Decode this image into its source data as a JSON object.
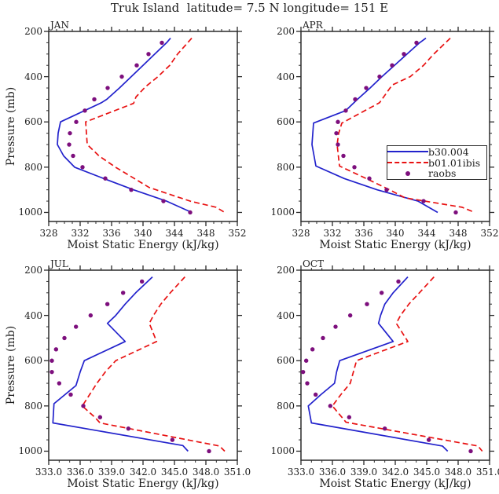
{
  "title": "Truk Island  latitude= 7.5 N longitude= 151 E",
  "colors": {
    "b30_004": "#2222cc",
    "b01_01ibis": "#e81111",
    "raobs": "#7d0f7d",
    "frame": "#2a2a2a",
    "text": "#1d1d1d"
  },
  "legend": {
    "entries": [
      {
        "label": "b30.004",
        "swatch": "solid-blue-line"
      },
      {
        "label": "b01.01ibis",
        "swatch": "dashed-red-line"
      },
      {
        "label": "raobs",
        "swatch": "purple-dot"
      }
    ]
  },
  "chart_data": [
    {
      "type": "line",
      "title": "JAN",
      "xlabel": "Moist Static Energy (kJ/kg)",
      "ylabel": "Pressure (mb)",
      "xlim": [
        328,
        352
      ],
      "xticks": [
        328,
        332,
        336,
        340,
        344,
        348,
        352
      ],
      "xtick_labels": [
        "328",
        "332",
        "336",
        "340",
        "344",
        "348",
        "352"
      ],
      "xminor_step": 1,
      "ylim": [
        200,
        1040
      ],
      "yticks": [
        200,
        400,
        600,
        800,
        1000
      ],
      "ytick_labels": [
        "200",
        "400",
        "600",
        "800",
        "1000"
      ],
      "yminor_step": 50,
      "y_axis_reversed_note": "pressure increases downward",
      "series": [
        {
          "name": "b30.004",
          "style": "solid",
          "color": "#2222cc",
          "points": [
            [
              230,
              343.5
            ],
            [
              250,
              343.0
            ],
            [
              300,
              341.5
            ],
            [
              350,
              340.0
            ],
            [
              400,
              338.5
            ],
            [
              450,
              337.0
            ],
            [
              500,
              335.4
            ],
            [
              515,
              334.7
            ],
            [
              600,
              329.5
            ],
            [
              650,
              329.2
            ],
            [
              700,
              329.1
            ],
            [
              750,
              329.9
            ],
            [
              800,
              331.3
            ],
            [
              850,
              335.0
            ],
            [
              900,
              338.8
            ],
            [
              950,
              343.0
            ],
            [
              1000,
              346.2
            ]
          ]
        },
        {
          "name": "b01.01ibis",
          "style": "dashed",
          "color": "#e81111",
          "points": [
            [
              230,
              346.2
            ],
            [
              300,
              344.4
            ],
            [
              350,
              343.4
            ],
            [
              400,
              341.9
            ],
            [
              445,
              340.3
            ],
            [
              490,
              339.1
            ],
            [
              518,
              338.8
            ],
            [
              600,
              332.7
            ],
            [
              650,
              332.8
            ],
            [
              700,
              332.9
            ],
            [
              750,
              334.4
            ],
            [
              800,
              336.5
            ],
            [
              850,
              338.9
            ],
            [
              890,
              340.8
            ],
            [
              950,
              346.0
            ],
            [
              977,
              349.3
            ],
            [
              1000,
              350.4
            ]
          ]
        },
        {
          "name": "raobs",
          "style": "dots",
          "color": "#7d0f7d",
          "points": [
            [
              250,
              342.4
            ],
            [
              300,
              340.7
            ],
            [
              350,
              339.2
            ],
            [
              400,
              337.3
            ],
            [
              450,
              335.5
            ],
            [
              500,
              333.8
            ],
            [
              550,
              332.6
            ],
            [
              600,
              331.5
            ],
            [
              650,
              330.7
            ],
            [
              700,
              330.6
            ],
            [
              750,
              331.1
            ],
            [
              800,
              332.3
            ],
            [
              850,
              335.2
            ],
            [
              900,
              338.5
            ],
            [
              950,
              342.6
            ],
            [
              1000,
              346.0
            ]
          ]
        }
      ]
    },
    {
      "type": "line",
      "title": "APR",
      "xlabel": "Moist Static Energy (kJ/kg)",
      "ylabel": "",
      "xlim": [
        328,
        352
      ],
      "xticks": [
        328,
        332,
        336,
        340,
        344,
        348,
        352
      ],
      "xtick_labels": [
        "328",
        "332",
        "336",
        "340",
        "344",
        "348",
        "352"
      ],
      "xminor_step": 1,
      "ylim": [
        200,
        1040
      ],
      "yticks": [
        200,
        400,
        600,
        800,
        1000
      ],
      "ytick_labels": [
        "200",
        "400",
        "600",
        "800",
        "1000"
      ],
      "yminor_step": 50,
      "series": [
        {
          "name": "b30.004",
          "style": "solid",
          "color": "#2222cc",
          "points": [
            [
              230,
              343.9
            ],
            [
              250,
              343.1
            ],
            [
              300,
              341.5
            ],
            [
              350,
              339.9
            ],
            [
              400,
              338.3
            ],
            [
              450,
              336.8
            ],
            [
              500,
              335.2
            ],
            [
              550,
              333.7
            ],
            [
              605,
              329.6
            ],
            [
              700,
              329.4
            ],
            [
              795,
              329.9
            ],
            [
              850,
              333.5
            ],
            [
              900,
              337.7
            ],
            [
              950,
              342.9
            ],
            [
              1000,
              345.4
            ]
          ]
        },
        {
          "name": "b01.01ibis",
          "style": "dashed",
          "color": "#e81111",
          "points": [
            [
              230,
              347.0
            ],
            [
              300,
              344.9
            ],
            [
              350,
              343.6
            ],
            [
              400,
              341.9
            ],
            [
              437,
              339.6
            ],
            [
              515,
              338.0
            ],
            [
              605,
              333.2
            ],
            [
              650,
              332.8
            ],
            [
              700,
              332.6
            ],
            [
              795,
              332.9
            ],
            [
              850,
              336.3
            ],
            [
              900,
              339.3
            ],
            [
              935,
              341.2
            ],
            [
              977,
              348.5
            ],
            [
              1000,
              350.1
            ]
          ]
        },
        {
          "name": "raobs",
          "style": "dots",
          "color": "#7d0f7d",
          "points": [
            [
              250,
              342.7
            ],
            [
              300,
              341.1
            ],
            [
              350,
              339.6
            ],
            [
              400,
              338.0
            ],
            [
              450,
              336.3
            ],
            [
              500,
              334.9
            ],
            [
              550,
              333.7
            ],
            [
              600,
              332.7
            ],
            [
              650,
              332.5
            ],
            [
              700,
              332.7
            ],
            [
              750,
              333.4
            ],
            [
              800,
              334.8
            ],
            [
              850,
              336.7
            ],
            [
              900,
              338.9
            ],
            [
              950,
              343.6
            ],
            [
              1000,
              347.7
            ]
          ]
        }
      ]
    },
    {
      "type": "line",
      "title": "JUL",
      "xlabel": "Moist Static Energy (kJ/kg)",
      "ylabel": "Pressure (mb)",
      "xlim": [
        333,
        351
      ],
      "xticks": [
        333,
        336,
        339,
        342,
        345,
        348,
        351
      ],
      "xtick_labels": [
        "333.0",
        "336.0",
        "339.0",
        "342.0",
        "345.0",
        "348.0",
        "351.0"
      ],
      "xminor_step": 1,
      "ylim": [
        200,
        1040
      ],
      "yticks": [
        200,
        400,
        600,
        800,
        1000
      ],
      "ytick_labels": [
        "200",
        "400",
        "600",
        "800",
        "1000"
      ],
      "yminor_step": 50,
      "series": [
        {
          "name": "b30.004",
          "style": "solid",
          "color": "#2222cc",
          "points": [
            [
              230,
              342.9
            ],
            [
              300,
              341.3
            ],
            [
              350,
              340.3
            ],
            [
              400,
              339.4
            ],
            [
              435,
              338.6
            ],
            [
              515,
              340.3
            ],
            [
              600,
              336.4
            ],
            [
              650,
              336.0
            ],
            [
              710,
              335.6
            ],
            [
              790,
              333.5
            ],
            [
              875,
              333.4
            ],
            [
              975,
              345.8
            ],
            [
              1000,
              346.3
            ]
          ]
        },
        {
          "name": "b01.01ibis",
          "style": "dashed",
          "color": "#e81111",
          "points": [
            [
              230,
              346.0
            ],
            [
              300,
              344.6
            ],
            [
              350,
              343.7
            ],
            [
              400,
              343.0
            ],
            [
              435,
              342.6
            ],
            [
              515,
              343.3
            ],
            [
              600,
              339.4
            ],
            [
              650,
              338.4
            ],
            [
              700,
              337.6
            ],
            [
              750,
              336.9
            ],
            [
              800,
              336.2
            ],
            [
              850,
              337.4
            ],
            [
              875,
              337.9
            ],
            [
              977,
              349.3
            ],
            [
              1000,
              349.8
            ]
          ]
        },
        {
          "name": "raobs",
          "style": "dots",
          "color": "#7d0f7d",
          "points": [
            [
              250,
              341.9
            ],
            [
              300,
              340.1
            ],
            [
              350,
              338.6
            ],
            [
              400,
              337.0
            ],
            [
              450,
              335.6
            ],
            [
              500,
              334.5
            ],
            [
              550,
              333.7
            ],
            [
              600,
              333.3
            ],
            [
              650,
              333.3
            ],
            [
              700,
              334.0
            ],
            [
              750,
              335.1
            ],
            [
              800,
              336.3
            ],
            [
              850,
              337.9
            ],
            [
              900,
              340.6
            ],
            [
              950,
              344.8
            ],
            [
              1000,
              348.3
            ]
          ]
        }
      ]
    },
    {
      "type": "line",
      "title": "OCT",
      "xlabel": "Moist Static Energy (kJ/kg)",
      "ylabel": "",
      "xlim": [
        333,
        351
      ],
      "xticks": [
        333,
        336,
        339,
        342,
        345,
        348,
        351
      ],
      "xtick_labels": [
        "333.0",
        "336.0",
        "339.0",
        "342.0",
        "345.0",
        "348.0",
        "351.0"
      ],
      "xminor_step": 1,
      "ylim": [
        200,
        1040
      ],
      "yticks": [
        200,
        400,
        600,
        800,
        1000
      ],
      "ytick_labels": [
        "200",
        "400",
        "600",
        "800",
        "1000"
      ],
      "yminor_step": 50,
      "series": [
        {
          "name": "b30.004",
          "style": "solid",
          "color": "#2222cc",
          "points": [
            [
              230,
              343.2
            ],
            [
              300,
              341.8
            ],
            [
              350,
              341.0
            ],
            [
              400,
              340.6
            ],
            [
              435,
              340.4
            ],
            [
              515,
              341.8
            ],
            [
              600,
              336.7
            ],
            [
              650,
              336.4
            ],
            [
              700,
              336.2
            ],
            [
              750,
              334.9
            ],
            [
              800,
              333.7
            ],
            [
              875,
              334.0
            ],
            [
              977,
              346.5
            ],
            [
              1000,
              347.0
            ]
          ]
        },
        {
          "name": "b01.01ibis",
          "style": "dashed",
          "color": "#e81111",
          "points": [
            [
              230,
              345.7
            ],
            [
              300,
              344.3
            ],
            [
              350,
              343.3
            ],
            [
              400,
              342.5
            ],
            [
              435,
              342.1
            ],
            [
              515,
              343.2
            ],
            [
              600,
              338.3
            ],
            [
              650,
              338.0
            ],
            [
              700,
              337.7
            ],
            [
              750,
              336.8
            ],
            [
              800,
              336.0
            ],
            [
              872,
              337.3
            ],
            [
              977,
              349.9
            ],
            [
              1000,
              350.3
            ]
          ]
        },
        {
          "name": "raobs",
          "style": "dots",
          "color": "#7d0f7d",
          "points": [
            [
              250,
              342.3
            ],
            [
              300,
              340.7
            ],
            [
              350,
              339.3
            ],
            [
              400,
              337.7
            ],
            [
              450,
              336.3
            ],
            [
              500,
              335.1
            ],
            [
              550,
              334.1
            ],
            [
              600,
              333.5
            ],
            [
              650,
              333.2
            ],
            [
              700,
              333.6
            ],
            [
              750,
              334.4
            ],
            [
              800,
              335.8
            ],
            [
              850,
              337.6
            ],
            [
              900,
              341.0
            ],
            [
              950,
              345.2
            ],
            [
              1000,
              349.2
            ]
          ]
        }
      ]
    }
  ]
}
